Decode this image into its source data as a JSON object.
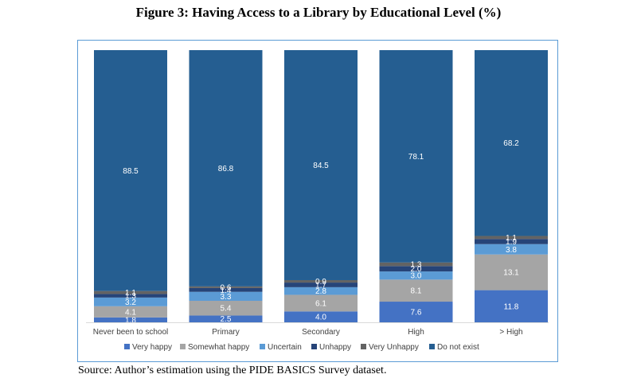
{
  "title": "Figure 3: Having Access to a Library by Educational Level (%)",
  "source": "Source: Author’s estimation using the PIDE BASICS Survey dataset.",
  "chart_data": {
    "type": "bar",
    "stacked": true,
    "orientation": "vertical",
    "categories": [
      "Never been to school",
      "Primary",
      "Secondary",
      "High",
      "> High"
    ],
    "series": [
      {
        "name": "Very happy",
        "color": "#4472c4",
        "values": [
          1.8,
          2.5,
          4.0,
          7.6,
          11.8
        ]
      },
      {
        "name": "Somewhat happy",
        "color": "#a5a5a5",
        "values": [
          4.1,
          5.4,
          6.1,
          8.1,
          13.1
        ]
      },
      {
        "name": "Uncertain",
        "color": "#5b9bd5",
        "values": [
          3.2,
          3.3,
          2.8,
          3.0,
          3.8
        ]
      },
      {
        "name": "Unhappy",
        "color": "#264478",
        "values": [
          1.3,
          1.4,
          1.7,
          2.0,
          1.9
        ]
      },
      {
        "name": "Very Unhappy",
        "color": "#636363",
        "values": [
          1.1,
          0.6,
          0.9,
          1.3,
          1.1
        ]
      },
      {
        "name": "Do not exist",
        "color": "#255e91",
        "values": [
          88.5,
          86.8,
          84.5,
          78.1,
          68.2
        ]
      }
    ],
    "ylim": [
      0,
      100
    ],
    "grid": false,
    "legend_position": "bottom"
  }
}
